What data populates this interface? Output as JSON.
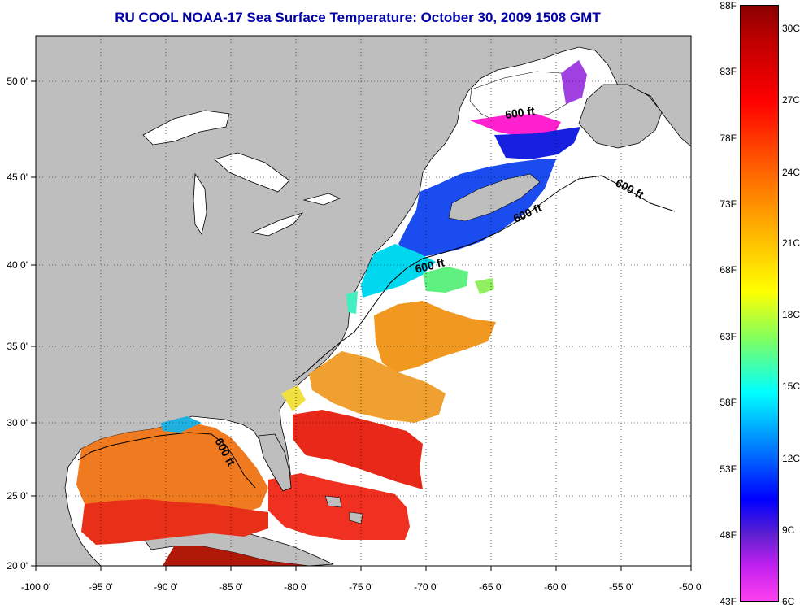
{
  "title": "RU COOL  NOAA-17  Sea Surface Temperature:  October 30, 2009 1508 GMT",
  "map": {
    "lon_ticks": [
      "-100 0'",
      "-95 0'",
      "-90 0'",
      "-85 0'",
      "-80 0'",
      "-75 0'",
      "-70 0'",
      "-65 0'",
      "-60 0'",
      "-55 0'",
      "-50 0'"
    ],
    "lat_ticks": [
      "20 0'",
      "25 0'",
      "30 0'",
      "35 0'",
      "40 0'",
      "45 0'",
      "50 0'"
    ],
    "contour_labels": [
      "600 ft",
      "600 ft",
      "600 ft",
      "600 ft",
      "600 ft"
    ],
    "colors": {
      "land": "#bebebe",
      "background": "#ffffff",
      "frame": "#000000"
    }
  },
  "colorbar": {
    "fahrenheit_labels": [
      "88F",
      "83F",
      "78F",
      "73F",
      "68F",
      "63F",
      "58F",
      "53F",
      "48F",
      "43F"
    ],
    "celsius_labels": [
      "30C",
      "27C",
      "24C",
      "21C",
      "18C",
      "15C",
      "12C",
      "9C",
      "6C"
    ]
  }
}
